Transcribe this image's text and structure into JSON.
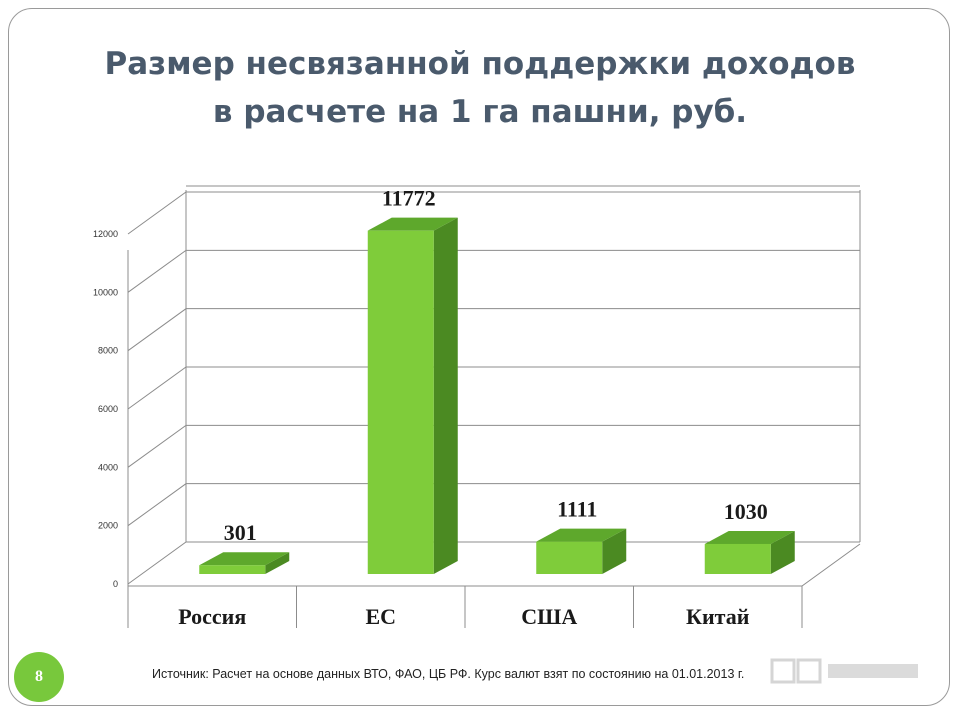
{
  "slide": {
    "title_line1": "Размер несвязанной поддержки доходов",
    "title_line2": "в расчете на 1 га пашни, руб.",
    "source": "Источник: Расчет на основе данных ВТО, ФАО, ЦБ РФ. Курс валют взят по состоянию на 01.01.2013 г.",
    "page_number": "8",
    "accent_color": "#78c83c"
  },
  "chart_data": {
    "type": "bar",
    "style": "3d-column",
    "categories": [
      "Россия",
      "ЕС",
      "США",
      "Китай"
    ],
    "values": [
      301,
      11772,
      1111,
      1030
    ],
    "data_labels": [
      "301",
      "11772",
      "1111",
      "1030"
    ],
    "ylim": [
      0,
      12000
    ],
    "yticks": [
      0,
      2000,
      4000,
      6000,
      8000,
      10000,
      12000
    ],
    "ytick_labels": [
      "0",
      "2000",
      "4000",
      "6000",
      "8000",
      "10000",
      "12000"
    ],
    "grid": true,
    "legend": "none",
    "colors": {
      "bar_front": "#7fcc3a",
      "bar_top": "#5ea82c",
      "bar_side": "#4b8a22",
      "grid": "#8c8c8c"
    }
  }
}
